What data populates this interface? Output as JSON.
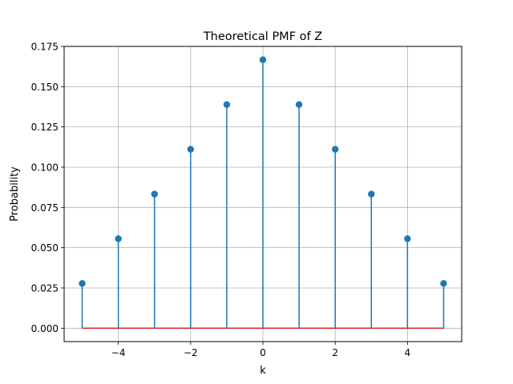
{
  "chart_data": {
    "type": "stem",
    "title": "Theoretical PMF of Z",
    "xlabel": "k",
    "ylabel": "Probability",
    "x": [
      -5,
      -4,
      -3,
      -2,
      -1,
      0,
      1,
      2,
      3,
      4,
      5
    ],
    "y": [
      0.0278,
      0.0556,
      0.0833,
      0.1111,
      0.1389,
      0.1667,
      0.1389,
      0.1111,
      0.0833,
      0.0556,
      0.0278
    ],
    "xlim": [
      -5.5,
      5.5
    ],
    "ylim": [
      -0.0083,
      0.175
    ],
    "xticks": [
      -4,
      -2,
      0,
      2,
      4
    ],
    "xtick_labels": [
      "−4",
      "−2",
      "0",
      "2",
      "4"
    ],
    "yticks": [
      0.0,
      0.025,
      0.05,
      0.075,
      0.1,
      0.125,
      0.15,
      0.175
    ],
    "ytick_labels": [
      "0.000",
      "0.025",
      "0.050",
      "0.075",
      "0.100",
      "0.125",
      "0.150",
      "0.175"
    ],
    "grid": true,
    "colors": {
      "stem": "#1f77b4",
      "marker": "#1f77b4",
      "baseline": "#d62728",
      "grid": "#b0b0b0"
    }
  }
}
